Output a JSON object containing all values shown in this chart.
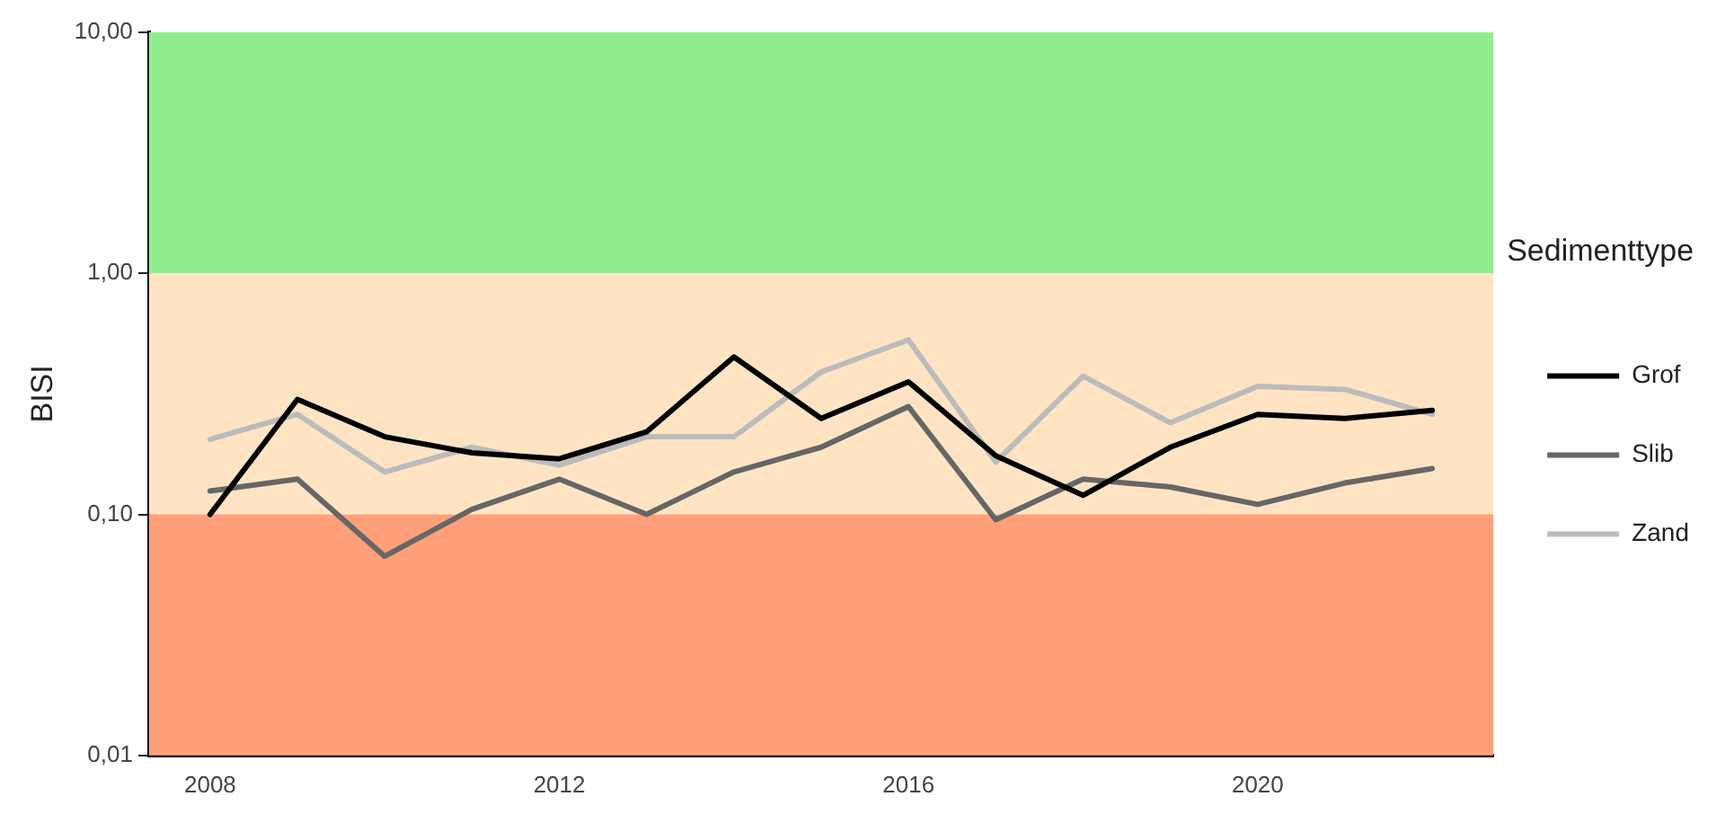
{
  "chart_data": {
    "type": "line",
    "ylabel": "BISI",
    "legend_title": "Sedimenttype",
    "legend": "right",
    "log": true,
    "grid": false,
    "marker": "none",
    "line_style": "solid",
    "x": [
      2008,
      2009,
      2010,
      2011,
      2012,
      2013,
      2014,
      2015,
      2016,
      2017,
      2018,
      2019,
      2020,
      2021,
      2022
    ],
    "xlim": [
      2007.3,
      2022.7
    ],
    "xticks": [
      2008,
      2012,
      2016,
      2020
    ],
    "ylim": [
      0.01,
      10
    ],
    "yticks": [
      {
        "value": 0.01,
        "label": "0,01"
      },
      {
        "value": 0.1,
        "label": "0,10"
      },
      {
        "value": 1,
        "label": "1,00"
      },
      {
        "value": 10,
        "label": "10,00"
      }
    ],
    "bands": [
      {
        "axis": "y",
        "from": 1,
        "to": 10,
        "label": null,
        "color": "#90ee90"
      },
      {
        "axis": "y",
        "from": 0.1,
        "to": 1,
        "label": null,
        "color": "#ffe4c4"
      },
      {
        "axis": "y",
        "from": 0.01,
        "to": 0.1,
        "label": null,
        "color": "#ffa07a"
      }
    ],
    "series": [
      {
        "name": "Grof",
        "color": "#000000",
        "values": [
          0.1,
          0.3,
          0.21,
          0.18,
          0.17,
          0.22,
          0.45,
          0.25,
          0.355,
          0.175,
          0.12,
          0.19,
          0.26,
          0.25,
          0.27
        ]
      },
      {
        "name": "Slib",
        "color": "#666666",
        "values": [
          0.125,
          0.14,
          0.067,
          0.105,
          0.14,
          0.1,
          0.15,
          0.19,
          0.28,
          0.095,
          0.14,
          0.13,
          0.11,
          0.135,
          0.155
        ]
      },
      {
        "name": "Zand",
        "color": "#bbbbbb",
        "values": [
          0.205,
          0.26,
          0.15,
          0.19,
          0.16,
          0.21,
          0.21,
          0.39,
          0.53,
          0.165,
          0.375,
          0.24,
          0.34,
          0.33,
          0.26
        ]
      }
    ]
  }
}
